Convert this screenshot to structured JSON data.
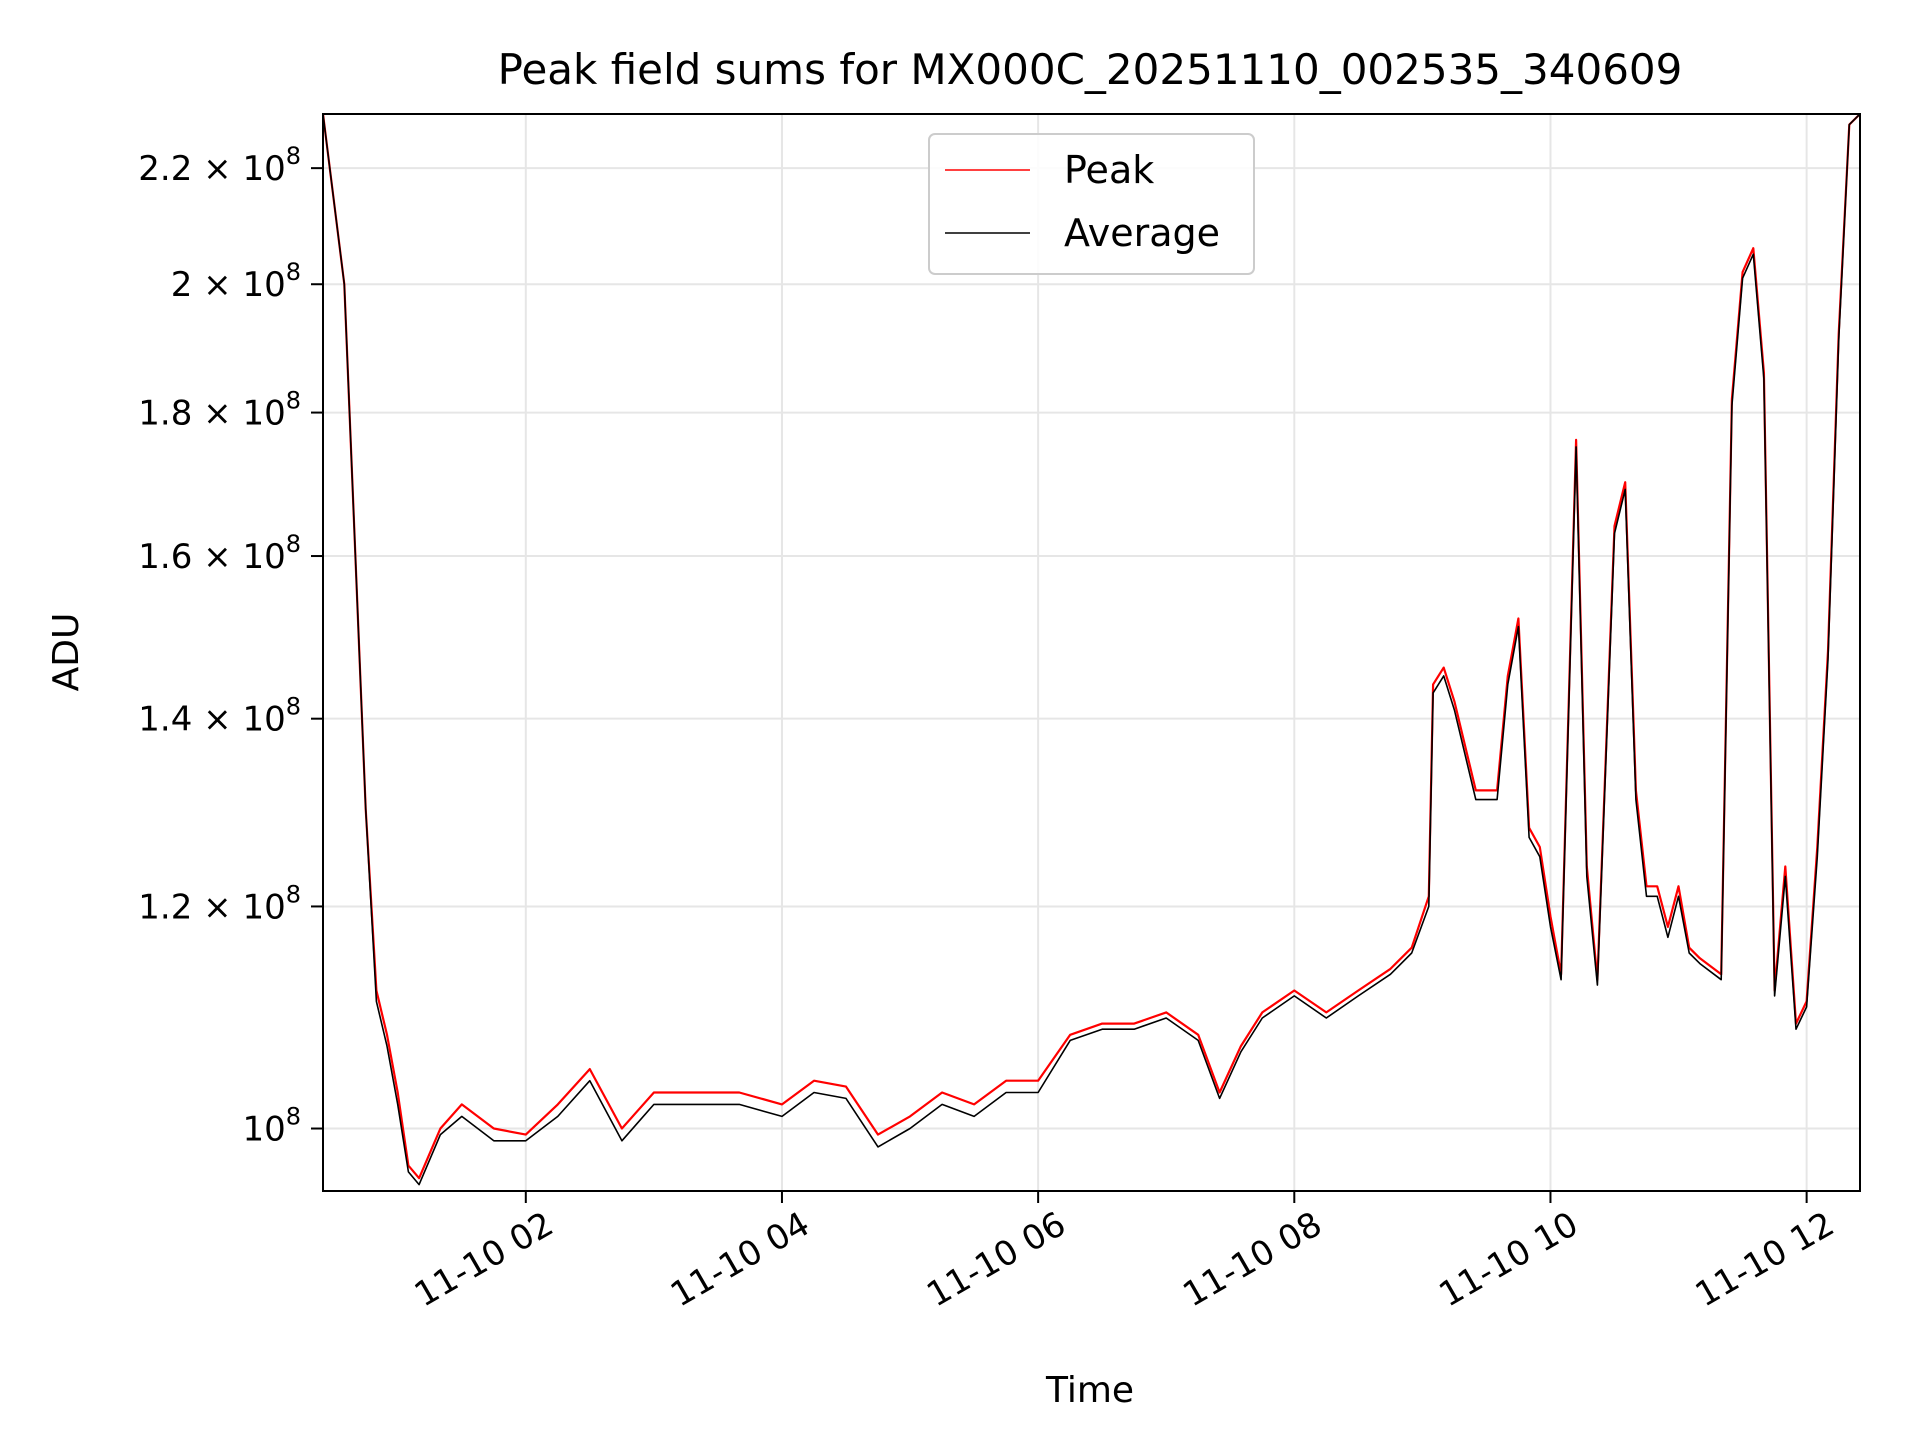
{
  "chart_data": {
    "type": "line",
    "title": "Peak field sums for MX000C_20251110_002535_340609",
    "xlabel": "Time",
    "ylabel": "ADU",
    "xlim": [
      "2025-11-10 00:25",
      "2025-11-10 12:25"
    ],
    "ylim": [
      95000000,
      230000000
    ],
    "yscale": "log",
    "grid": true,
    "legend_position": "upper center",
    "x_tick_labels": [
      "11-10 02",
      "11-10 04",
      "11-10 06",
      "11-10 08",
      "11-10 10",
      "11-10 12"
    ],
    "y_tick_labels": [
      {
        "mantissa": "2.2",
        "exponent": "8",
        "value": 220000000
      },
      {
        "mantissa": "2",
        "exponent": "8",
        "value": 200000000
      },
      {
        "mantissa": "1.8",
        "exponent": "8",
        "value": 180000000
      },
      {
        "mantissa": "1.6",
        "exponent": "8",
        "value": 160000000
      },
      {
        "mantissa": "1.4",
        "exponent": "8",
        "value": 140000000
      },
      {
        "mantissa": "1.2",
        "exponent": "8",
        "value": 120000000
      },
      {
        "mantissa": "",
        "exponent": "8",
        "value": 100000000
      }
    ],
    "x": [
      "2025-11-10 00:25",
      "2025-11-10 00:35",
      "2025-11-10 00:45",
      "2025-11-10 00:50",
      "2025-11-10 00:55",
      "2025-11-10 01:00",
      "2025-11-10 01:05",
      "2025-11-10 01:10",
      "2025-11-10 01:20",
      "2025-11-10 01:30",
      "2025-11-10 01:45",
      "2025-11-10 02:00",
      "2025-11-10 02:15",
      "2025-11-10 02:30",
      "2025-11-10 02:45",
      "2025-11-10 03:00",
      "2025-11-10 03:20",
      "2025-11-10 03:40",
      "2025-11-10 04:00",
      "2025-11-10 04:15",
      "2025-11-10 04:30",
      "2025-11-10 04:45",
      "2025-11-10 05:00",
      "2025-11-10 05:15",
      "2025-11-10 05:30",
      "2025-11-10 05:45",
      "2025-11-10 06:00",
      "2025-11-10 06:15",
      "2025-11-10 06:30",
      "2025-11-10 06:45",
      "2025-11-10 07:00",
      "2025-11-10 07:15",
      "2025-11-10 07:25",
      "2025-11-10 07:35",
      "2025-11-10 07:45",
      "2025-11-10 08:00",
      "2025-11-10 08:15",
      "2025-11-10 08:30",
      "2025-11-10 08:45",
      "2025-11-10 08:55",
      "2025-11-10 09:03",
      "2025-11-10 09:05",
      "2025-11-10 09:10",
      "2025-11-10 09:15",
      "2025-11-10 09:25",
      "2025-11-10 09:35",
      "2025-11-10 09:40",
      "2025-11-10 09:45",
      "2025-11-10 09:50",
      "2025-11-10 09:55",
      "2025-11-10 10:00",
      "2025-11-10 10:05",
      "2025-11-10 10:12",
      "2025-11-10 10:17",
      "2025-11-10 10:22",
      "2025-11-10 10:30",
      "2025-11-10 10:35",
      "2025-11-10 10:40",
      "2025-11-10 10:45",
      "2025-11-10 10:50",
      "2025-11-10 10:55",
      "2025-11-10 11:00",
      "2025-11-10 11:05",
      "2025-11-10 11:10",
      "2025-11-10 11:20",
      "2025-11-10 11:25",
      "2025-11-10 11:30",
      "2025-11-10 11:35",
      "2025-11-10 11:40",
      "2025-11-10 11:45",
      "2025-11-10 11:50",
      "2025-11-10 11:55",
      "2025-11-10 12:00",
      "2025-11-10 12:05",
      "2025-11-10 12:10",
      "2025-11-10 12:15",
      "2025-11-10 12:20",
      "2025-11-10 12:25"
    ],
    "series": [
      {
        "name": "Peak",
        "color": "#ff0000",
        "values": [
          230000000,
          200000000,
          130000000,
          112000000,
          108000000,
          103000000,
          97000000,
          96000000,
          100000000,
          102000000,
          100000000,
          99500000,
          102000000,
          105000000,
          100000000,
          103000000,
          103000000,
          103000000,
          102000000,
          104000000,
          103500000,
          99500000,
          101000000,
          103000000,
          102000000,
          104000000,
          104000000,
          108000000,
          109000000,
          109000000,
          110000000,
          108000000,
          103000000,
          107000000,
          110000000,
          112000000,
          110000000,
          112000000,
          114000000,
          116000000,
          121000000,
          144000000,
          146000000,
          142000000,
          132000000,
          132000000,
          145000000,
          152000000,
          128000000,
          126000000,
          119000000,
          113500000,
          176000000,
          124000000,
          113000000,
          164000000,
          170000000,
          132000000,
          122000000,
          122000000,
          118000000,
          122000000,
          116000000,
          115000000,
          113500000,
          182000000,
          202000000,
          206000000,
          186000000,
          112000000,
          124000000,
          109000000,
          111000000,
          126000000,
          148000000,
          192000000,
          228000000,
          230000000
        ]
      },
      {
        "name": "Average",
        "color": "#000000",
        "values": [
          230000000,
          200000000,
          130000000,
          111000000,
          107000000,
          102000000,
          96500000,
          95500000,
          99500000,
          101000000,
          99000000,
          99000000,
          101000000,
          104000000,
          99000000,
          102000000,
          102000000,
          102000000,
          101000000,
          103000000,
          102500000,
          98500000,
          100000000,
          102000000,
          101000000,
          103000000,
          103000000,
          107500000,
          108500000,
          108500000,
          109500000,
          107500000,
          102500000,
          106500000,
          109500000,
          111500000,
          109500000,
          111500000,
          113500000,
          115500000,
          120000000,
          143000000,
          145000000,
          141000000,
          131000000,
          131000000,
          144000000,
          151000000,
          127000000,
          125000000,
          118000000,
          113000000,
          175000000,
          123000000,
          112500000,
          163000000,
          169000000,
          131000000,
          121000000,
          121000000,
          117000000,
          121000000,
          115500000,
          114500000,
          113000000,
          181000000,
          201000000,
          205000000,
          185000000,
          111500000,
          123000000,
          108500000,
          110500000,
          125000000,
          147000000,
          191000000,
          228000000,
          230000000
        ]
      }
    ]
  }
}
